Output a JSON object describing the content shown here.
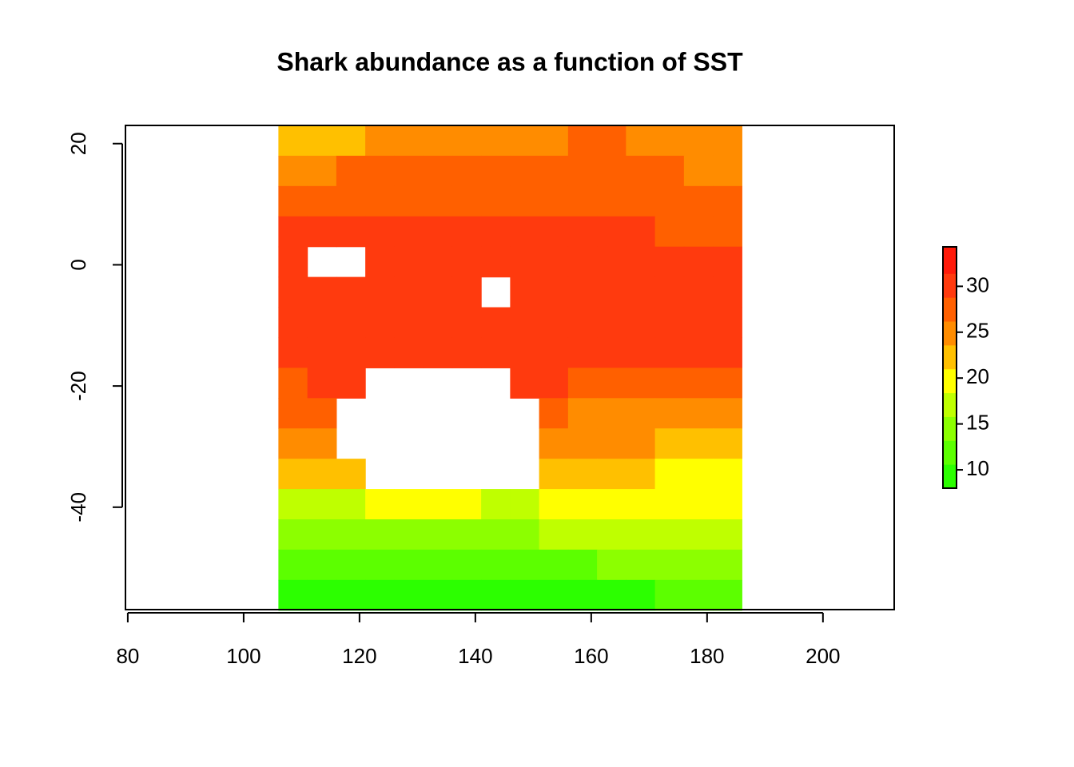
{
  "chart_data": {
    "type": "raster",
    "title": "Shark abundance as a function of SST",
    "xlim": [
      79.6,
      212.3
    ],
    "xticks": [
      80,
      100,
      120,
      140,
      160,
      180,
      200
    ],
    "ylim": [
      -56.9,
      23
    ],
    "yticks": [
      -40,
      -20,
      0,
      20
    ],
    "extent": [
      106,
      186,
      -57,
      23
    ],
    "z": [
      [
        21,
        22,
        23,
        24,
        25,
        25,
        26,
        26,
        26,
        26,
        27,
        27,
        26,
        26,
        25,
        25
      ],
      [
        24,
        26,
        27,
        27,
        27,
        27,
        27,
        27,
        27,
        27,
        27,
        27,
        27,
        27,
        26,
        26
      ],
      [
        28,
        28,
        28,
        28,
        28,
        28,
        28,
        28,
        28,
        28,
        28,
        28,
        28,
        27,
        27,
        27
      ],
      [
        29,
        29,
        29,
        29,
        29,
        29,
        29,
        29,
        29,
        29,
        29,
        29,
        29,
        28,
        28,
        28
      ],
      [
        29,
        null,
        null,
        30,
        30,
        31,
        31,
        31,
        31,
        31,
        31,
        31,
        31,
        30,
        29,
        29
      ],
      [
        30,
        30,
        31,
        31,
        31,
        31,
        31,
        null,
        31,
        31,
        31,
        31,
        31,
        31,
        31,
        30
      ],
      [
        31,
        31,
        31,
        31,
        31,
        31,
        31,
        31,
        31,
        31,
        31,
        31,
        31,
        31,
        31,
        31
      ],
      [
        30,
        31,
        31,
        31,
        31,
        31,
        31,
        31,
        31,
        31,
        31,
        31,
        31,
        31,
        30,
        30
      ],
      [
        28,
        29,
        30,
        null,
        null,
        null,
        null,
        null,
        30,
        29,
        28,
        28,
        28,
        28,
        28,
        28
      ],
      [
        27,
        28,
        null,
        null,
        null,
        null,
        null,
        null,
        null,
        27,
        26,
        26,
        26,
        26,
        26,
        26
      ],
      [
        24,
        25,
        null,
        null,
        null,
        null,
        null,
        null,
        null,
        25,
        24,
        24,
        24,
        23,
        23,
        23
      ],
      [
        21,
        22,
        23,
        null,
        null,
        null,
        null,
        null,
        null,
        22,
        22,
        21,
        21,
        20,
        20,
        20
      ],
      [
        17,
        18,
        18,
        19,
        19,
        19,
        19,
        18,
        18,
        19,
        19,
        19,
        19,
        19,
        19,
        19
      ],
      [
        15,
        15,
        15,
        15,
        15,
        15,
        15,
        15,
        15,
        16,
        16,
        16,
        16,
        17,
        17,
        17
      ],
      [
        12,
        12,
        12,
        13,
        13,
        13,
        13,
        13,
        13,
        13,
        13,
        14,
        14,
        14,
        14,
        14
      ],
      [
        9,
        9,
        9,
        9,
        9,
        9,
        9,
        9,
        9,
        10,
        10,
        10,
        10,
        11,
        11,
        11
      ]
    ],
    "legend": {
      "lim": [
        8,
        34.3
      ],
      "breaks": [
        8,
        10.6,
        13.2,
        15.8,
        18.4,
        21,
        23.6,
        26.2,
        28.8,
        31.4,
        34.3
      ],
      "colors": [
        "#2cff00",
        "#5cff00",
        "#8cff00",
        "#bfff00",
        "#ffff00",
        "#ffc000",
        "#ff8c00",
        "#ff6000",
        "#ff3a0e",
        "#ff1a0a"
      ],
      "ticks": [
        10,
        15,
        20,
        25,
        30
      ]
    }
  }
}
